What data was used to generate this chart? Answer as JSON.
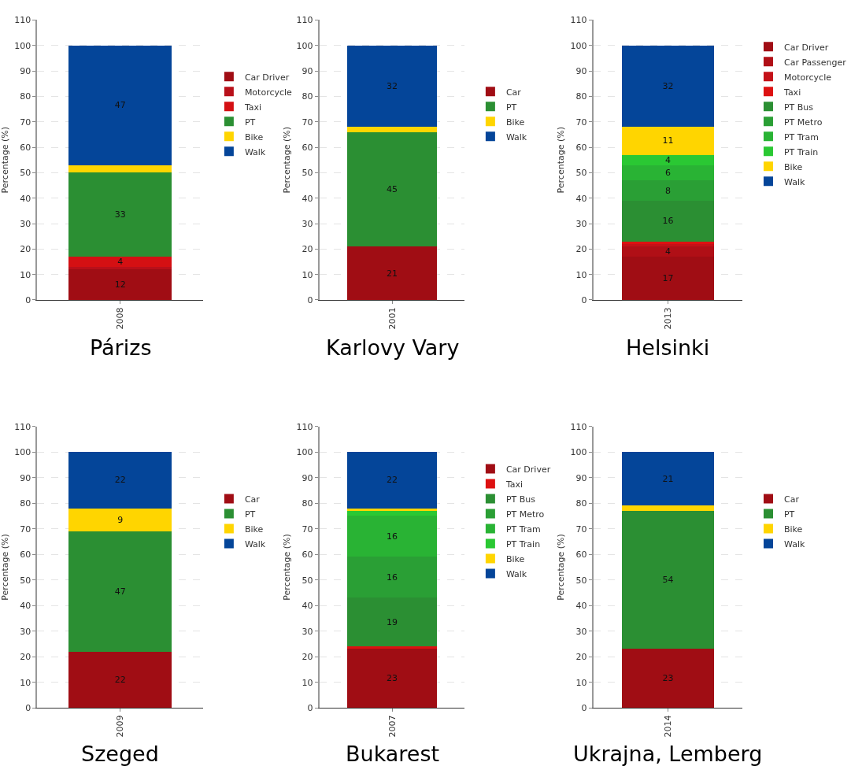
{
  "chart_data": [
    {
      "type": "bar",
      "stacked": true,
      "title": "Párizs",
      "ylabel": "Percentage (%)",
      "categories": [
        "2008"
      ],
      "ylim": [
        0,
        110
      ],
      "yticks": [
        0,
        10,
        20,
        30,
        40,
        50,
        60,
        70,
        80,
        90,
        100,
        110
      ],
      "grid": "y",
      "legend": "right",
      "series": [
        {
          "name": "Car Driver",
          "color": "#a00d14",
          "values": [
            12
          ],
          "value_labels": [
            "12"
          ]
        },
        {
          "name": "Motorcycle",
          "color": "#b8101a",
          "values": [
            1
          ],
          "value_labels": [
            null
          ]
        },
        {
          "name": "Taxi",
          "color": "#d41013",
          "values": [
            4
          ],
          "value_labels": [
            "4"
          ]
        },
        {
          "name": "PT",
          "color": "#2b8f33",
          "values": [
            33
          ],
          "value_labels": [
            "33"
          ]
        },
        {
          "name": "Bike",
          "color": "#ffd500",
          "values": [
            3
          ],
          "value_labels": [
            null
          ]
        },
        {
          "name": "Walk",
          "color": "#044599",
          "values": [
            47
          ],
          "value_labels": [
            "47"
          ]
        }
      ]
    },
    {
      "type": "bar",
      "stacked": true,
      "title": "Karlovy Vary",
      "ylabel": "Percentage (%)",
      "categories": [
        "2001"
      ],
      "ylim": [
        0,
        110
      ],
      "yticks": [
        0,
        10,
        20,
        30,
        40,
        50,
        60,
        70,
        80,
        90,
        100,
        110
      ],
      "grid": "y",
      "legend": "right",
      "series": [
        {
          "name": "Car",
          "color": "#a00d14",
          "values": [
            21
          ],
          "value_labels": [
            "21"
          ]
        },
        {
          "name": "PT",
          "color": "#2b8f33",
          "values": [
            45
          ],
          "value_labels": [
            "45"
          ]
        },
        {
          "name": "Bike",
          "color": "#ffd500",
          "values": [
            2
          ],
          "value_labels": [
            null
          ]
        },
        {
          "name": "Walk",
          "color": "#044599",
          "values": [
            32
          ],
          "value_labels": [
            "32"
          ]
        }
      ]
    },
    {
      "type": "bar",
      "stacked": true,
      "title": "Helsinki",
      "ylabel": "Percentage (%)",
      "categories": [
        "2013"
      ],
      "ylim": [
        0,
        110
      ],
      "yticks": [
        0,
        10,
        20,
        30,
        40,
        50,
        60,
        70,
        80,
        90,
        100,
        110
      ],
      "grid": "y",
      "legend": "right",
      "series": [
        {
          "name": "Car Driver",
          "color": "#a00d14",
          "values": [
            17
          ],
          "value_labels": [
            "17"
          ]
        },
        {
          "name": "Car Passenger",
          "color": "#b00f16",
          "values": [
            4
          ],
          "value_labels": [
            "4"
          ]
        },
        {
          "name": "Motorcycle",
          "color": "#c41118",
          "values": [
            1
          ],
          "value_labels": [
            null
          ]
        },
        {
          "name": "Taxi",
          "color": "#dd1111",
          "values": [
            1
          ],
          "value_labels": [
            null
          ]
        },
        {
          "name": "PT Bus",
          "color": "#2b8f33",
          "values": [
            16
          ],
          "value_labels": [
            "16"
          ]
        },
        {
          "name": "PT Metro",
          "color": "#2a9f35",
          "values": [
            8
          ],
          "value_labels": [
            "8"
          ]
        },
        {
          "name": "PT Tram",
          "color": "#29b334",
          "values": [
            6
          ],
          "value_labels": [
            "6"
          ]
        },
        {
          "name": "PT Train",
          "color": "#2ac833",
          "values": [
            4
          ],
          "value_labels": [
            "4"
          ]
        },
        {
          "name": "Bike",
          "color": "#ffd500",
          "values": [
            11
          ],
          "value_labels": [
            "11"
          ]
        },
        {
          "name": "Walk",
          "color": "#044599",
          "values": [
            32
          ],
          "value_labels": [
            "32"
          ]
        }
      ]
    },
    {
      "type": "bar",
      "stacked": true,
      "title": "Szeged",
      "ylabel": "Percentage (%)",
      "categories": [
        "2009"
      ],
      "ylim": [
        0,
        110
      ],
      "yticks": [
        0,
        10,
        20,
        30,
        40,
        50,
        60,
        70,
        80,
        90,
        100,
        110
      ],
      "grid": "y",
      "legend": "right",
      "series": [
        {
          "name": "Car",
          "color": "#a00d14",
          "values": [
            22
          ],
          "value_labels": [
            "22"
          ]
        },
        {
          "name": "PT",
          "color": "#2b8f33",
          "values": [
            47
          ],
          "value_labels": [
            "47"
          ]
        },
        {
          "name": "Bike",
          "color": "#ffd500",
          "values": [
            9
          ],
          "value_labels": [
            "9"
          ]
        },
        {
          "name": "Walk",
          "color": "#044599",
          "values": [
            22
          ],
          "value_labels": [
            "22"
          ]
        }
      ]
    },
    {
      "type": "bar",
      "stacked": true,
      "title": "Bukarest",
      "ylabel": "Percentage (%)",
      "categories": [
        "2007"
      ],
      "ylim": [
        0,
        110
      ],
      "yticks": [
        0,
        10,
        20,
        30,
        40,
        50,
        60,
        70,
        80,
        90,
        100,
        110
      ],
      "grid": "y",
      "legend": "right",
      "series": [
        {
          "name": "Car Driver",
          "color": "#a00d14",
          "values": [
            23
          ],
          "value_labels": [
            "23"
          ]
        },
        {
          "name": "Taxi",
          "color": "#dd1111",
          "values": [
            1
          ],
          "value_labels": [
            null
          ]
        },
        {
          "name": "PT Bus",
          "color": "#2b8f33",
          "values": [
            19
          ],
          "value_labels": [
            "19"
          ]
        },
        {
          "name": "PT Metro",
          "color": "#2a9f35",
          "values": [
            16
          ],
          "value_labels": [
            "16"
          ]
        },
        {
          "name": "PT Tram",
          "color": "#29b334",
          "values": [
            16
          ],
          "value_labels": [
            "16"
          ]
        },
        {
          "name": "PT Train",
          "color": "#2ac833",
          "values": [
            2
          ],
          "value_labels": [
            null
          ]
        },
        {
          "name": "Bike",
          "color": "#ffd500",
          "values": [
            1
          ],
          "value_labels": [
            null
          ]
        },
        {
          "name": "Walk",
          "color": "#044599",
          "values": [
            22
          ],
          "value_labels": [
            "22"
          ]
        }
      ]
    },
    {
      "type": "bar",
      "stacked": true,
      "title": "Ukrajna, Lemberg",
      "ylabel": "Percentage (%)",
      "categories": [
        "2014"
      ],
      "ylim": [
        0,
        110
      ],
      "yticks": [
        0,
        10,
        20,
        30,
        40,
        50,
        60,
        70,
        80,
        90,
        100,
        110
      ],
      "grid": "y",
      "legend": "right",
      "series": [
        {
          "name": "Car",
          "color": "#a00d14",
          "values": [
            23
          ],
          "value_labels": [
            "23"
          ]
        },
        {
          "name": "PT",
          "color": "#2b8f33",
          "values": [
            54
          ],
          "value_labels": [
            "54"
          ]
        },
        {
          "name": "Bike",
          "color": "#ffd500",
          "values": [
            2
          ],
          "value_labels": [
            null
          ]
        },
        {
          "name": "Walk",
          "color": "#044599",
          "values": [
            21
          ],
          "value_labels": [
            "21"
          ]
        }
      ]
    }
  ]
}
